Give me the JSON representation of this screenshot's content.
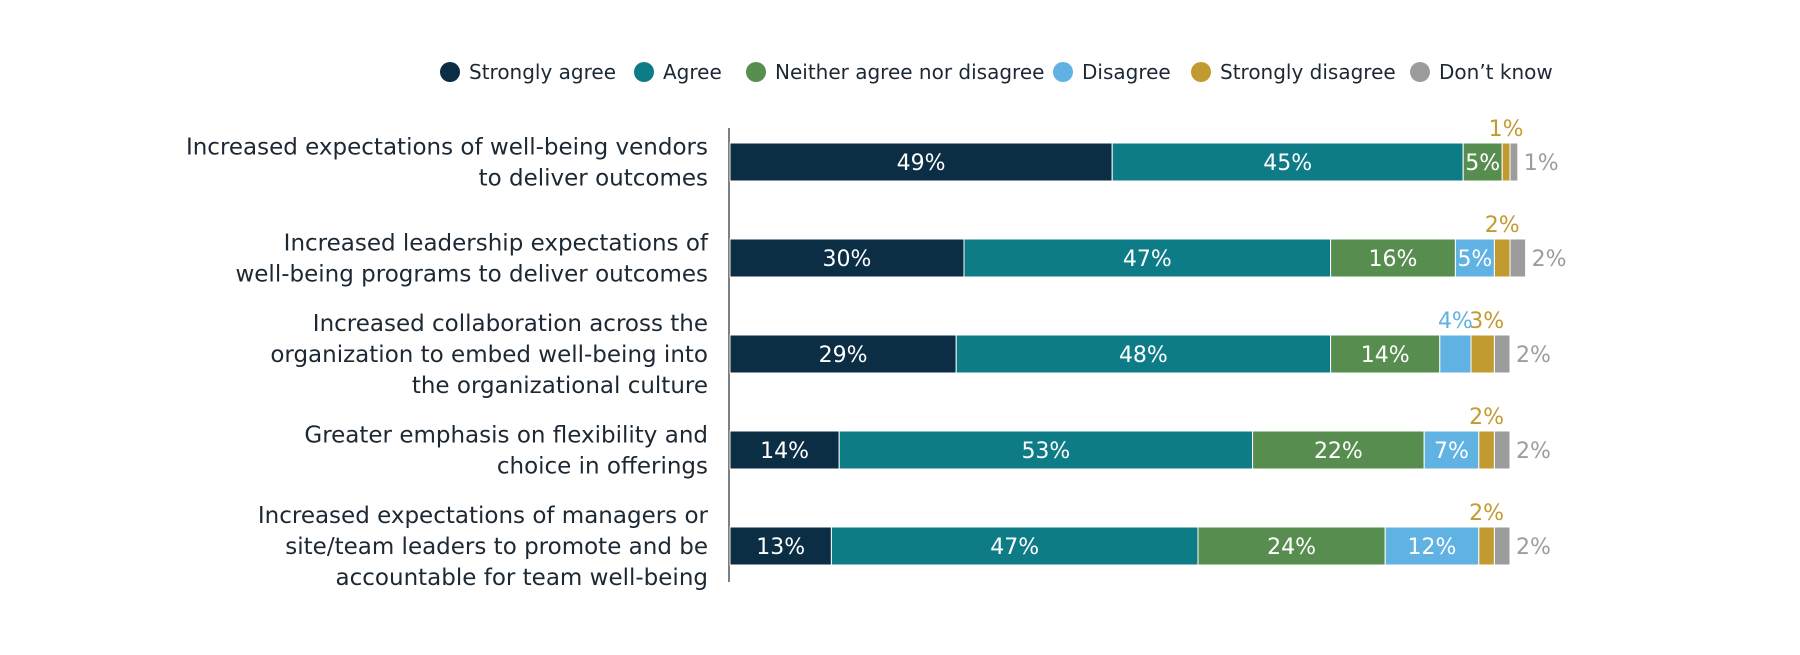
{
  "chart_data": {
    "type": "bar",
    "orientation": "horizontal",
    "stacked": true,
    "title": "",
    "xlabel": "",
    "ylabel": "",
    "xlim": [
      0,
      100
    ],
    "legend_position": "top",
    "categories": [
      [
        "Increased expectations of well-being vendors",
        "to deliver outcomes"
      ],
      [
        "Increased leadership expectations of",
        "well-being programs to deliver outcomes"
      ],
      [
        "Increased collaboration across the",
        "organization to embed well-being into",
        "the organizational culture"
      ],
      [
        "Greater emphasis on flexibility and",
        "choice in offerings"
      ],
      [
        "Increased expectations of managers or",
        "site/team leaders to promote and be",
        "accountable for team well-being"
      ]
    ],
    "series": [
      {
        "name": "Strongly agree",
        "color": "#0b2e45",
        "values": [
          49,
          30,
          29,
          14,
          13
        ],
        "labels": [
          "49%",
          "30%",
          "29%",
          "14%",
          "13%"
        ]
      },
      {
        "name": "Agree",
        "color": "#0e7c86",
        "values": [
          45,
          47,
          48,
          53,
          47
        ],
        "labels": [
          "45%",
          "47%",
          "48%",
          "53%",
          "47%"
        ]
      },
      {
        "name": "Neither agree nor disagree",
        "color": "#578d4f",
        "values": [
          5,
          16,
          14,
          22,
          24
        ],
        "labels": [
          "5%",
          "16%",
          "14%",
          "22%",
          "24%"
        ]
      },
      {
        "name": "Disagree",
        "color": "#60b2e3",
        "values": [
          0,
          5,
          4,
          7,
          12
        ],
        "labels": [
          "",
          "5%",
          "4%",
          "7%",
          "12%"
        ]
      },
      {
        "name": "Strongly disagree",
        "color": "#c19a30",
        "values": [
          1,
          2,
          3,
          2,
          2
        ],
        "labels": [
          "1%",
          "2%",
          "3%",
          "2%",
          "2%"
        ]
      },
      {
        "name": "Don’t know",
        "color": "#9c9c9c",
        "values": [
          1,
          2,
          2,
          2,
          2
        ],
        "labels": [
          "1%",
          "2%",
          "2%",
          "2%",
          "2%"
        ]
      }
    ]
  }
}
